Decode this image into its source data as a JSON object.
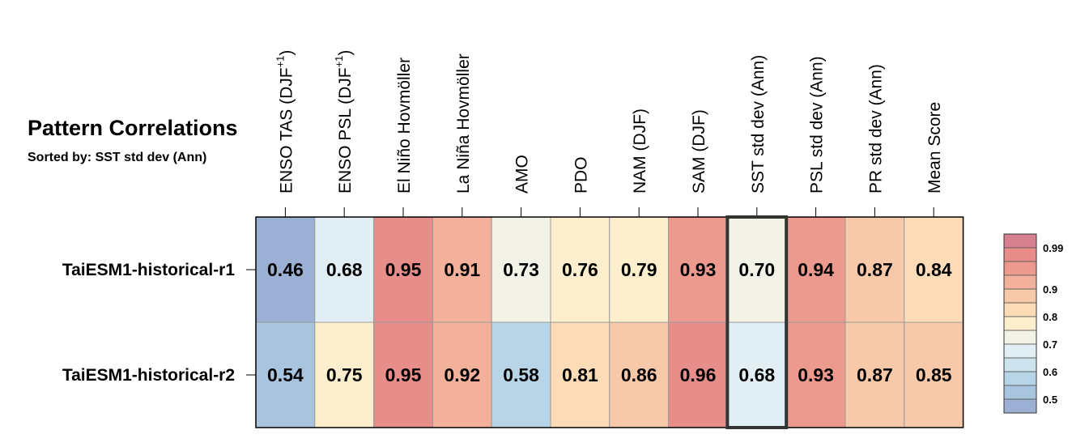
{
  "chart_data": {
    "type": "heatmap",
    "title": "Pattern Correlations",
    "subtitle": "Sorted by: SST std dev (Ann)",
    "columns": [
      {
        "label": "ENSO TAS (DJF",
        "sup": "+1",
        "suffix": ")"
      },
      {
        "label": "ENSO PSL (DJF",
        "sup": "+1",
        "suffix": ")"
      },
      {
        "label": "El Niño Hovmöller"
      },
      {
        "label": "La Niña Hovmöller"
      },
      {
        "label": "AMO"
      },
      {
        "label": "PDO"
      },
      {
        "label": "NAM (DJF)"
      },
      {
        "label": "SAM (DJF)"
      },
      {
        "label": "SST std dev (Ann)"
      },
      {
        "label": "PSL std dev (Ann)"
      },
      {
        "label": "PR std dev (Ann)"
      },
      {
        "label": "Mean Score"
      }
    ],
    "rows": [
      "TaiESM1-historical-r1",
      "TaiESM1-historical-r2"
    ],
    "values": [
      [
        "0.46",
        "0.68",
        "0.95",
        "0.91",
        "0.73",
        "0.76",
        "0.79",
        "0.93",
        "0.70",
        "0.94",
        "0.87",
        "0.84"
      ],
      [
        "0.54",
        "0.75",
        "0.95",
        "0.92",
        "0.58",
        "0.81",
        "0.86",
        "0.96",
        "0.68",
        "0.93",
        "0.87",
        "0.85"
      ]
    ],
    "highlighted_column": 8,
    "colorbar": {
      "bins": [
        {
          "lo": null,
          "hi": 0.5,
          "color": "#9cb0d3"
        },
        {
          "lo": 0.5,
          "hi": 0.55,
          "color": "#a8c4de"
        },
        {
          "lo": 0.55,
          "hi": 0.6,
          "color": "#b7d5e7"
        },
        {
          "lo": 0.6,
          "hi": 0.65,
          "color": "#cde4ef"
        },
        {
          "lo": 0.65,
          "hi": 0.7,
          "color": "#e1eff4"
        },
        {
          "lo": 0.7,
          "hi": 0.75,
          "color": "#f2f2e7"
        },
        {
          "lo": 0.75,
          "hi": 0.8,
          "color": "#fdefcd"
        },
        {
          "lo": 0.8,
          "hi": 0.85,
          "color": "#fbdcb7"
        },
        {
          "lo": 0.85,
          "hi": 0.9,
          "color": "#f8c9a8"
        },
        {
          "lo": 0.9,
          "hi": 0.925,
          "color": "#f3b19c"
        },
        {
          "lo": 0.925,
          "hi": 0.95,
          "color": "#ec9a8e"
        },
        {
          "lo": 0.95,
          "hi": 0.99,
          "color": "#e78e8b"
        },
        {
          "lo": 0.99,
          "hi": null,
          "color": "#d7808f"
        }
      ],
      "tick_labels": [
        "0.5",
        "0.6",
        "0.7",
        "0.8",
        "0.9",
        "0.99"
      ]
    }
  }
}
